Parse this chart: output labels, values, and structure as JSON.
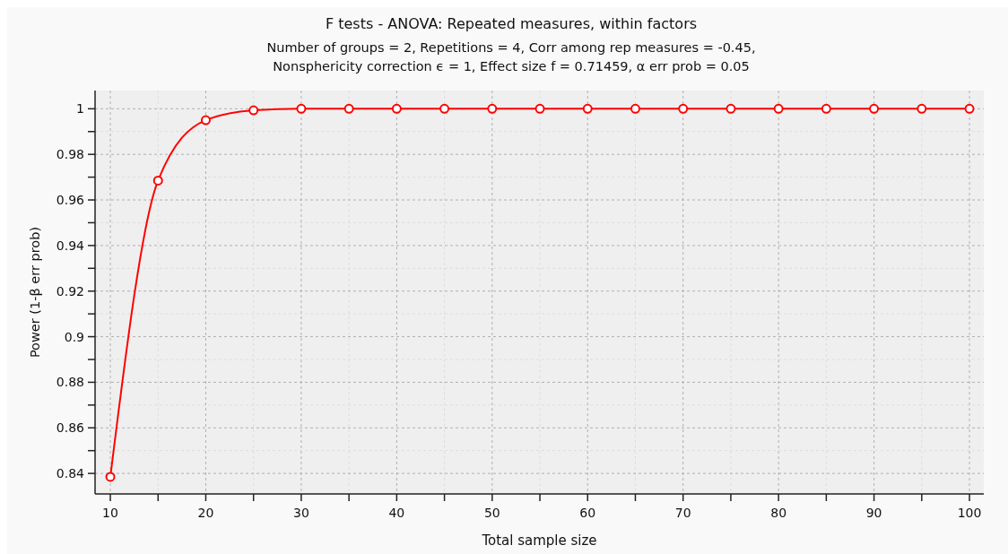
{
  "chart_data": {
    "type": "line",
    "title": "F tests - ANOVA: Repeated measures, within factors",
    "subtitle": "Number of groups = 2, Repetitions = 4, Corr among rep measures = -0.45,\nNonsphericity correction ϵ = 1, Effect size f = 0.71459, α err prob = 0.05",
    "xlabel": "Total sample size",
    "ylabel": "Power (1-β err prob)",
    "x": [
      10,
      15,
      20,
      25,
      30,
      35,
      40,
      45,
      50,
      55,
      60,
      65,
      70,
      75,
      80,
      85,
      90,
      95,
      100
    ],
    "series": [
      {
        "color": "#ff0000",
        "values": [
          0.8385,
          0.9685,
          0.995,
          0.9993,
          1,
          1,
          1,
          1,
          1,
          1,
          1,
          1,
          1,
          1,
          1,
          1,
          1,
          1,
          1
        ]
      }
    ],
    "xlim": [
      8.4,
      101.5
    ],
    "ylim": [
      0.831,
      1.008
    ],
    "xticks": [
      10,
      {
        "value": 15,
        "label": null
      },
      20,
      {
        "value": 25,
        "label": null
      },
      30,
      {
        "value": 35,
        "label": null
      },
      40,
      {
        "value": 45,
        "label": null
      },
      50,
      {
        "value": 55,
        "label": null
      },
      60,
      {
        "value": 65,
        "label": null
      },
      70,
      {
        "value": 75,
        "label": null
      },
      80,
      {
        "value": 85,
        "label": null
      },
      90,
      {
        "value": 95,
        "label": null
      },
      100
    ],
    "yticks": [
      0.84,
      {
        "value": 0.85,
        "label": null
      },
      0.86,
      {
        "value": 0.87,
        "label": null
      },
      0.88,
      {
        "value": 0.89,
        "label": null
      },
      0.9,
      {
        "value": 0.91,
        "label": null
      },
      0.92,
      {
        "value": 0.93,
        "label": null
      },
      0.94,
      {
        "value": 0.95,
        "label": null
      },
      0.96,
      {
        "value": 0.97,
        "label": null
      },
      0.98,
      {
        "value": 0.99,
        "label": null
      },
      1
    ],
    "grid": true,
    "marker": "circle",
    "line_style": "solid"
  }
}
